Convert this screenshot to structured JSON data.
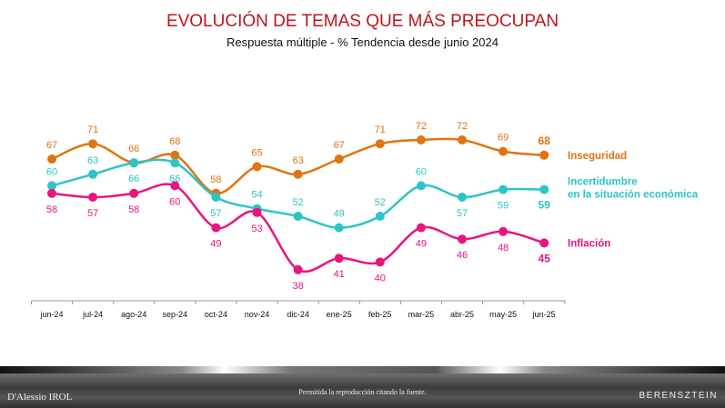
{
  "chart_data": {
    "type": "line",
    "title": "EVOLUCIÓN DE TEMAS QUE MÁS PREOCUPAN",
    "subtitle": "Respuesta múltiple - % Tendencia desde junio 2024",
    "categories": [
      "jun-24",
      "jul-24",
      "ago-24",
      "sep-24",
      "oct-24",
      "nov-24",
      "dic-24",
      "ene-25",
      "feb-25",
      "mar-25",
      "abr-25",
      "may-25",
      "jun-25"
    ],
    "series": [
      {
        "name": "Inseguridad",
        "color": "#e07410",
        "values": [
          67,
          71,
          66,
          68,
          58,
          65,
          63,
          67,
          71,
          72,
          72,
          69,
          68
        ]
      },
      {
        "name": "Incertidumbre en la situación económica",
        "name_lines": [
          "Incertidumbre",
          "en la situación económica"
        ],
        "color": "#2ec4c6",
        "values": [
          60,
          63,
          66,
          66,
          57,
          54,
          52,
          49,
          52,
          60,
          57,
          59,
          59
        ]
      },
      {
        "name": "Inflación",
        "color": "#e8157f",
        "values": [
          58,
          57,
          58,
          60,
          49,
          53,
          38,
          41,
          40,
          49,
          46,
          48,
          45
        ]
      }
    ],
    "legend_placement": "right, at line ends",
    "grid": false
  },
  "footer": {
    "left_logo": "D'Alessio IROL",
    "center_text": "Permitida la reproducción citando la fuente.",
    "right_logo": "BERENSZTEIN"
  }
}
